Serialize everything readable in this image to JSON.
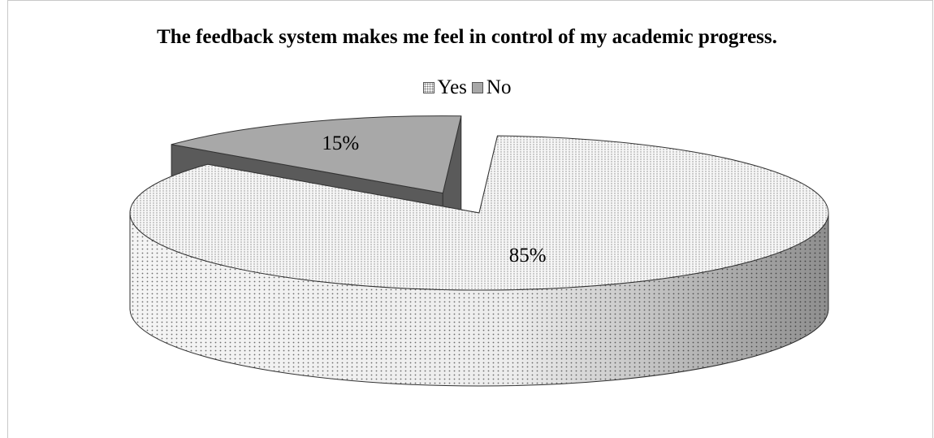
{
  "chart_data": {
    "type": "pie",
    "title": "The feedback system makes me feel in control of my academic progress.",
    "legend_position": "top",
    "categories": [
      "Yes",
      "No"
    ],
    "values": [
      85,
      15
    ],
    "data_labels": [
      "85%",
      "15%"
    ],
    "colors": {
      "Yes": "#f2f2f2",
      "No": "#a8a8a8"
    },
    "exploded": "No",
    "style": "3d"
  }
}
